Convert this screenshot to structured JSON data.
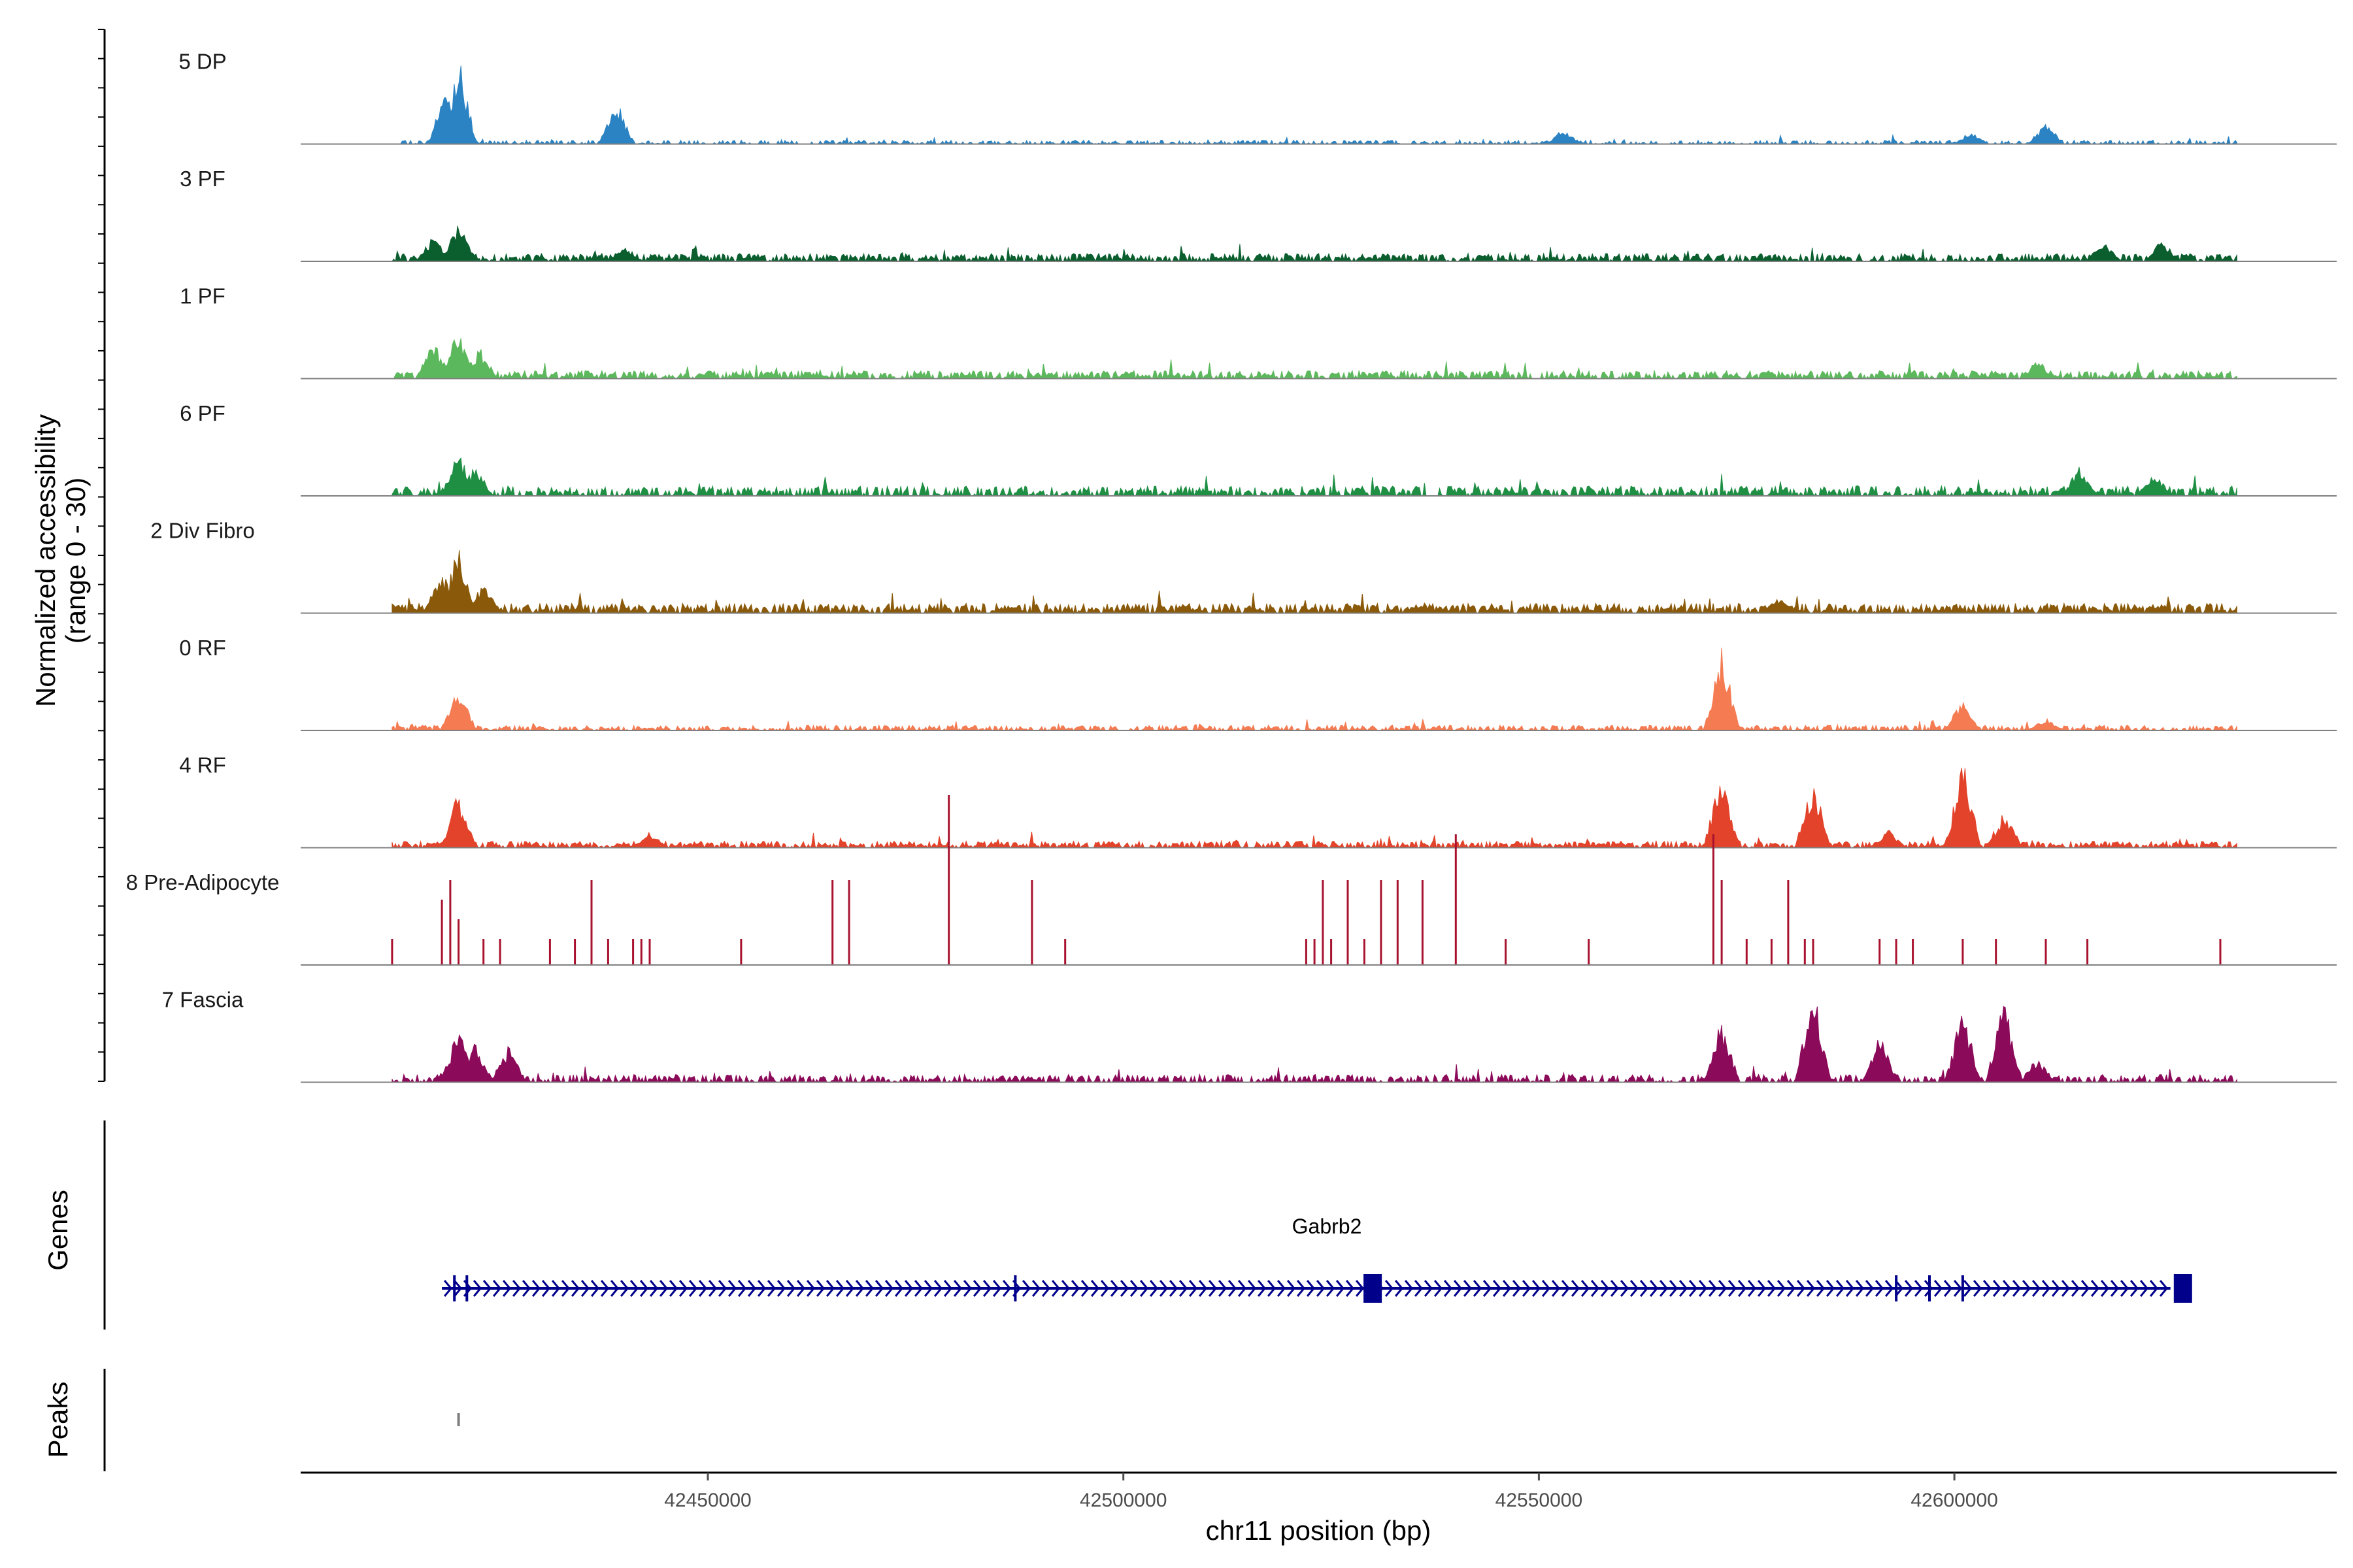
{
  "chart_data": {
    "type": "area",
    "title": "",
    "chromosome": "chr11",
    "xlabel": "chr11 position (bp)",
    "xlim": [
      42401000,
      42646000
    ],
    "x_ticks": [
      42450000,
      42500000,
      42550000,
      42600000
    ],
    "x_tick_labels": [
      "42450000",
      "42500000",
      "42550000",
      "42600000"
    ],
    "ylabel_line1": "Normalized accessibility",
    "ylabel_line2": "(range 0 - 30)",
    "y_range": [
      0,
      30
    ],
    "data_start": 42412000,
    "data_end": 42634000,
    "tracks": [
      {
        "name": "5 DP",
        "color": "#2b83c3",
        "base": 0.6,
        "density": 0.5,
        "seed": 11,
        "peaks": [
          [
            42420000,
            28
          ],
          [
            42418500,
            18
          ],
          [
            42439000,
            14
          ],
          [
            42553000,
            5
          ],
          [
            42602000,
            4
          ],
          [
            42611000,
            7
          ]
        ]
      },
      {
        "name": "3 PF",
        "color": "#0b5f2f",
        "base": 1.2,
        "density": 0.75,
        "seed": 23,
        "peaks": [
          [
            42420000,
            12
          ],
          [
            42417000,
            8
          ],
          [
            42440000,
            5
          ],
          [
            42618000,
            6
          ],
          [
            42625000,
            7
          ]
        ]
      },
      {
        "name": "1 PF",
        "color": "#5cb85c",
        "base": 1.2,
        "density": 0.75,
        "seed": 37,
        "peaks": [
          [
            42420000,
            16
          ],
          [
            42417000,
            12
          ],
          [
            42422500,
            10
          ],
          [
            42610000,
            6
          ]
        ]
      },
      {
        "name": "6 PF",
        "color": "#1f8f44",
        "base": 1.5,
        "density": 0.7,
        "seed": 41,
        "peaks": [
          [
            42420000,
            14
          ],
          [
            42422000,
            10
          ],
          [
            42615000,
            9
          ],
          [
            42624000,
            8
          ]
        ]
      },
      {
        "name": "2 Div Fibro",
        "color": "#8a5a0a",
        "base": 1.5,
        "density": 0.8,
        "seed": 53,
        "peaks": [
          [
            42420000,
            22
          ],
          [
            42418000,
            14
          ],
          [
            42423000,
            10
          ],
          [
            42579000,
            5
          ]
        ]
      },
      {
        "name": "0 RF",
        "color": "#f47b52",
        "base": 0.8,
        "density": 0.7,
        "seed": 67,
        "peaks": [
          [
            42420000,
            14
          ],
          [
            42572000,
            26
          ],
          [
            42601000,
            10
          ],
          [
            42611000,
            4
          ]
        ]
      },
      {
        "name": "4 RF",
        "color": "#e2432a",
        "base": 1.0,
        "density": 0.8,
        "seed": 71,
        "peaks": [
          [
            42420000,
            18
          ],
          [
            42572000,
            25
          ],
          [
            42583000,
            22
          ],
          [
            42601000,
            28
          ],
          [
            42606000,
            12
          ],
          [
            42592000,
            6
          ],
          [
            42443000,
            5
          ]
        ]
      },
      {
        "name": "8 Pre-Adipocyte",
        "color": "#a8122e",
        "base": 0,
        "density": 0,
        "seed": 83,
        "bars": [
          [
            42412000,
            8
          ],
          [
            42418000,
            20
          ],
          [
            42419000,
            26
          ],
          [
            42420000,
            14
          ],
          [
            42423000,
            8
          ],
          [
            42425000,
            8
          ],
          [
            42431000,
            8
          ],
          [
            42434000,
            8
          ],
          [
            42436000,
            26
          ],
          [
            42438000,
            8
          ],
          [
            42441000,
            8
          ],
          [
            42442000,
            8
          ],
          [
            42443000,
            8
          ],
          [
            42454000,
            8
          ],
          [
            42465000,
            26
          ],
          [
            42467000,
            26
          ],
          [
            42479000,
            52
          ],
          [
            42489000,
            26
          ],
          [
            42493000,
            8
          ],
          [
            42522000,
            8
          ],
          [
            42523000,
            8
          ],
          [
            42524000,
            26
          ],
          [
            42525000,
            8
          ],
          [
            42527000,
            26
          ],
          [
            42529000,
            8
          ],
          [
            42531000,
            26
          ],
          [
            42533000,
            26
          ],
          [
            42536000,
            26
          ],
          [
            42540000,
            40
          ],
          [
            42546000,
            8
          ],
          [
            42556000,
            8
          ],
          [
            42571000,
            40
          ],
          [
            42572000,
            26
          ],
          [
            42575000,
            8
          ],
          [
            42578000,
            8
          ],
          [
            42580000,
            26
          ],
          [
            42582000,
            8
          ],
          [
            42583000,
            8
          ],
          [
            42591000,
            8
          ],
          [
            42593000,
            8
          ],
          [
            42595000,
            8
          ],
          [
            42601000,
            8
          ],
          [
            42605000,
            8
          ],
          [
            42611000,
            8
          ],
          [
            42616000,
            8
          ],
          [
            42632000,
            8
          ]
        ]
      },
      {
        "name": "7 Fascia",
        "color": "#8c0a5a",
        "base": 1.2,
        "density": 0.65,
        "seed": 97,
        "peaks": [
          [
            42420000,
            18
          ],
          [
            42422000,
            14
          ],
          [
            42426000,
            12
          ],
          [
            42572000,
            20
          ],
          [
            42583000,
            30
          ],
          [
            42591000,
            16
          ],
          [
            42601000,
            24
          ],
          [
            42606000,
            28
          ],
          [
            42610000,
            8
          ]
        ]
      }
    ],
    "genes": {
      "title": "Genes",
      "name": "Gabrb2",
      "start": 42418000,
      "end": 42626000,
      "strand": "+",
      "exons": [
        42419500,
        42421000,
        42487000,
        42530000,
        42593000,
        42597000,
        42601000,
        42627500
      ]
    },
    "peaks_track": {
      "title": "Peaks",
      "regions": [
        42420000
      ]
    }
  }
}
